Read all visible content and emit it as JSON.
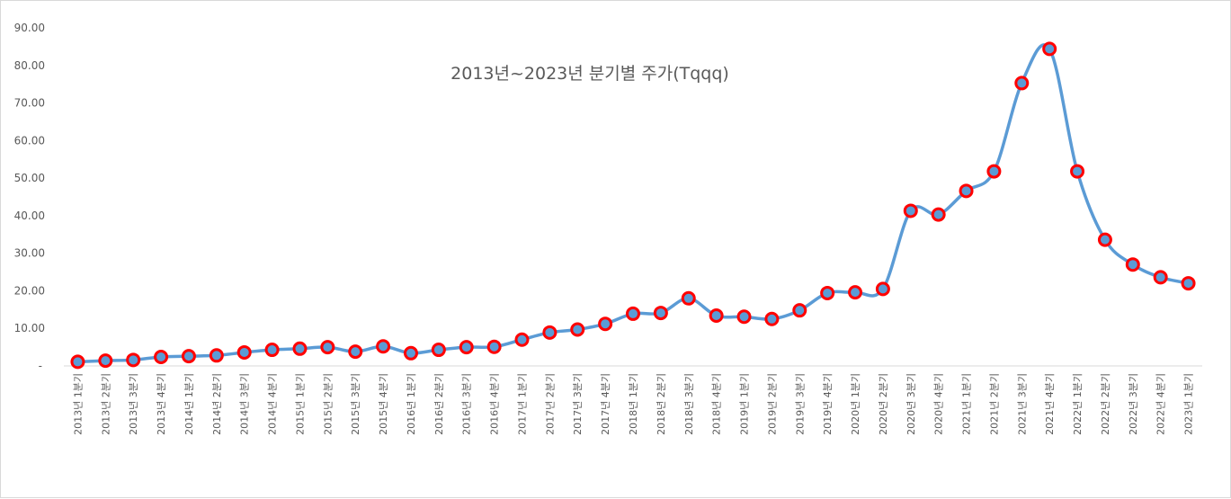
{
  "chart_data": {
    "type": "line",
    "title": "2013년~2023년 분기별 주가(Tqqq)",
    "xlabel": "",
    "ylabel": "",
    "ylim": [
      0,
      90
    ],
    "yticks": [
      "-",
      "10.00",
      "20.00",
      "30.00",
      "40.00",
      "50.00",
      "60.00",
      "70.00",
      "80.00",
      "90.00"
    ],
    "grid": false,
    "legend": "none",
    "smooth": true,
    "colors": {
      "line": "#5b9bd5",
      "marker_fill": "#5b9bd5",
      "marker_edge": "#ff0000",
      "axis": "#d9d9d9",
      "text": "#595959"
    },
    "categories": [
      "2013년 1분기",
      "2013년 2분기",
      "2013년 3분기",
      "2013년 4분기",
      "2014년 1분기",
      "2014년 2분기",
      "2014년 3분기",
      "2014년 4분기",
      "2015년 1분기",
      "2015년 2분기",
      "2015년 3분기",
      "2015년 4분기",
      "2016년 1분기",
      "2016년 2분기",
      "2016년 3분기",
      "2016년 4분기",
      "2017년 1분기",
      "2017년 2분기",
      "2017년 3분기",
      "2017년 4분기",
      "2018년 1분기",
      "2018년 2분기",
      "2018년 3분기",
      "2018년 4분기",
      "2019년 1분기",
      "2019년 2분기",
      "2019년 3분기",
      "2019년 4분기",
      "2020년 1분기",
      "2020년 2분기",
      "2020년 3분기",
      "2020년 4분기",
      "2021년 1분기",
      "2021년 2분기",
      "2021년 3분기",
      "2021년 4분기",
      "2022년 1분기",
      "2022년 2분기",
      "2022년 3분기",
      "2022년 4분기",
      "2023년 1분기"
    ],
    "series": [
      {
        "values": [
          1.1,
          1.4,
          1.6,
          2.4,
          2.6,
          2.8,
          3.6,
          4.3,
          4.6,
          5.0,
          3.8,
          5.2,
          3.4,
          4.3,
          5.0,
          5.1,
          7.0,
          8.9,
          9.7,
          11.2,
          13.9,
          14.1,
          18.0,
          13.4,
          13.1,
          12.5,
          14.8,
          19.4,
          19.6,
          20.5,
          41.3,
          40.3,
          46.6,
          51.8,
          75.3,
          84.4,
          51.8,
          33.6,
          27.0,
          23.6,
          22.0
        ]
      }
    ]
  }
}
